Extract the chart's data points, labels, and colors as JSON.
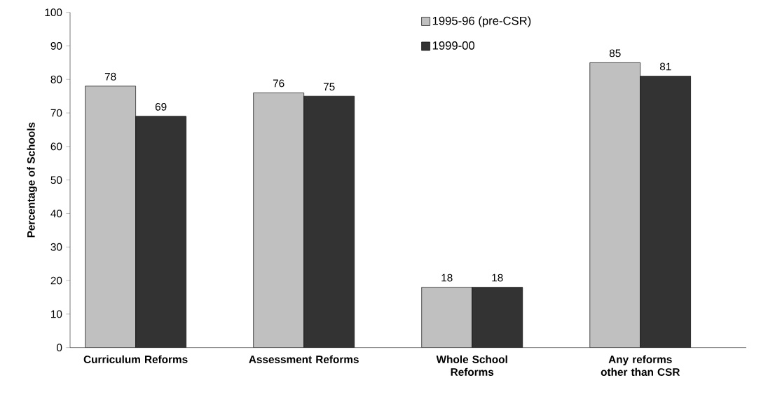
{
  "chart_data": {
    "type": "bar",
    "ylabel": "Percentage of Schools",
    "categories": [
      "Curriculum Reforms",
      "Assessment Reforms",
      "Whole School Reforms",
      "Any reforms other than CSR"
    ],
    "series": [
      {
        "name": "1995-96 (pre-CSR)",
        "color": "#c0c0c0",
        "values": [
          78,
          76,
          18,
          85
        ]
      },
      {
        "name": "1999-00",
        "color": "#333333",
        "values": [
          69,
          75,
          18,
          81
        ]
      }
    ],
    "ylim": [
      0,
      100
    ],
    "yticks": [
      0,
      10,
      20,
      30,
      40,
      50,
      60,
      70,
      80,
      90,
      100
    ],
    "data_labels": true,
    "legend": "top right",
    "grid": false
  }
}
